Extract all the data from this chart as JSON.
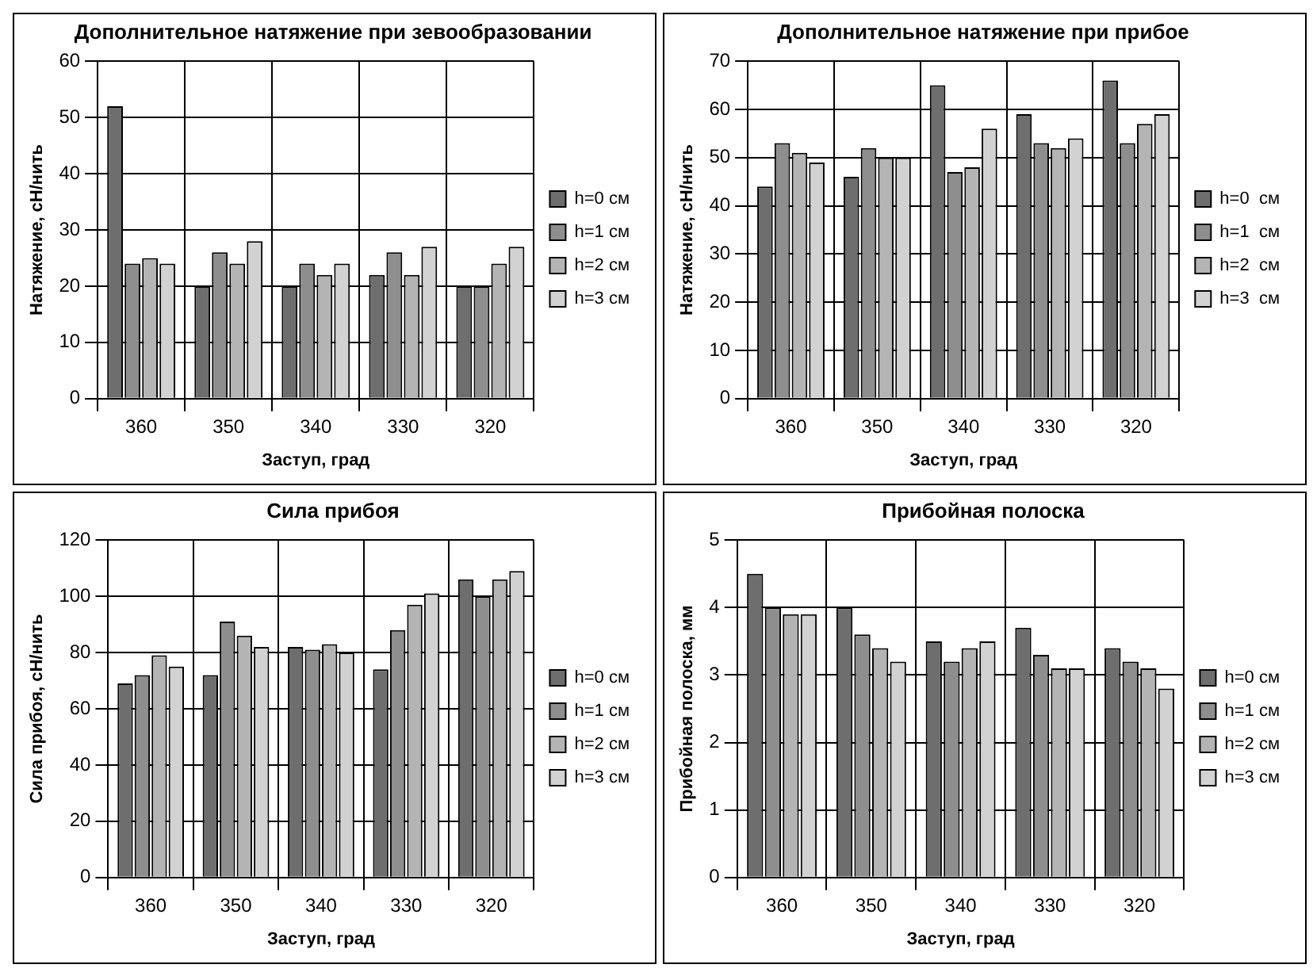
{
  "chart_data": [
    {
      "type": "bar",
      "title": "Дополнительное натяжение при зевообразовании",
      "xlabel": "Заступ, град",
      "ylabel": "Натяжение, сН/нить",
      "categories": [
        "360",
        "350",
        "340",
        "330",
        "320"
      ],
      "series": [
        {
          "name": "h=0 см",
          "color": "#6e6e6e",
          "values": [
            52,
            20,
            20,
            22,
            20
          ]
        },
        {
          "name": "h=1 см",
          "color": "#8e8e8e",
          "values": [
            24,
            26,
            24,
            26,
            20
          ]
        },
        {
          "name": "h=2 см",
          "color": "#b4b4b4",
          "values": [
            25,
            24,
            22,
            22,
            24
          ]
        },
        {
          "name": "h=3 см",
          "color": "#d2d2d2",
          "values": [
            24,
            28,
            24,
            27,
            27
          ]
        }
      ],
      "ylim": [
        0,
        60
      ],
      "yticks": [
        0,
        10,
        20,
        30,
        40,
        50,
        60
      ],
      "grid": true,
      "legend": "right"
    },
    {
      "type": "bar",
      "title": "Дополнительное натяжение при прибое",
      "xlabel": "Заступ, град",
      "ylabel": "Натяжение, сН/нить",
      "categories": [
        "360",
        "350",
        "340",
        "330",
        "320"
      ],
      "series": [
        {
          "name": "h=0  см",
          "color": "#6e6e6e",
          "values": [
            44,
            46,
            65,
            59,
            66
          ]
        },
        {
          "name": "h=1  см",
          "color": "#8e8e8e",
          "values": [
            53,
            52,
            47,
            53,
            53
          ]
        },
        {
          "name": "h=2  см",
          "color": "#b4b4b4",
          "values": [
            51,
            50,
            48,
            52,
            57
          ]
        },
        {
          "name": "h=3  см",
          "color": "#d2d2d2",
          "values": [
            49,
            50,
            56,
            54,
            59
          ]
        }
      ],
      "ylim": [
        0,
        70
      ],
      "yticks": [
        0,
        10,
        20,
        30,
        40,
        50,
        60,
        70
      ],
      "grid": true,
      "legend": "right"
    },
    {
      "type": "bar",
      "title": "Сила прибоя",
      "xlabel": "Заступ, град",
      "ylabel": "Сила прибоя, сН/нить",
      "categories": [
        "360",
        "350",
        "340",
        "330",
        "320"
      ],
      "series": [
        {
          "name": "h=0 см",
          "color": "#6e6e6e",
          "values": [
            69,
            72,
            82,
            74,
            106
          ]
        },
        {
          "name": "h=1 см",
          "color": "#8e8e8e",
          "values": [
            72,
            91,
            81,
            88,
            100
          ]
        },
        {
          "name": "h=2 см",
          "color": "#b4b4b4",
          "values": [
            79,
            86,
            83,
            97,
            106
          ]
        },
        {
          "name": "h=3 см",
          "color": "#d2d2d2",
          "values": [
            75,
            82,
            80,
            101,
            109
          ]
        }
      ],
      "ylim": [
        0,
        120
      ],
      "yticks": [
        0,
        20,
        40,
        60,
        80,
        100,
        120
      ],
      "grid": true,
      "legend": "right"
    },
    {
      "type": "bar",
      "title": "Прибойная полоска",
      "xlabel": "Заступ, град",
      "ylabel": "Прибойная полоска, мм",
      "categories": [
        "360",
        "350",
        "340",
        "330",
        "320"
      ],
      "series": [
        {
          "name": "h=0 см",
          "color": "#6e6e6e",
          "values": [
            4.5,
            4.0,
            3.5,
            3.7,
            3.4
          ]
        },
        {
          "name": "h=1 см",
          "color": "#8e8e8e",
          "values": [
            4.0,
            3.6,
            3.2,
            3.3,
            3.2
          ]
        },
        {
          "name": "h=2 см",
          "color": "#b4b4b4",
          "values": [
            3.9,
            3.4,
            3.4,
            3.1,
            3.1
          ]
        },
        {
          "name": "h=3 см",
          "color": "#d2d2d2",
          "values": [
            3.9,
            3.2,
            3.5,
            3.1,
            2.8
          ]
        }
      ],
      "ylim": [
        0,
        5
      ],
      "yticks": [
        0,
        1,
        2,
        3,
        4,
        5
      ],
      "grid": true,
      "legend": "right"
    }
  ]
}
